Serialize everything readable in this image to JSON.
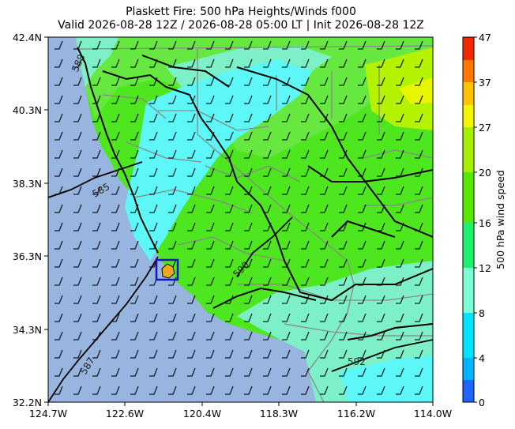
{
  "title": {
    "line1": "Plaskett Fire: 500 hPa Heights/Winds f000",
    "line2": "Valid 2026-08-28 12Z / 2026-08-28 05:00 LT | Init 2026-08-28 12Z"
  },
  "map": {
    "x_ticks": [
      "124.7W",
      "122.6W",
      "120.4W",
      "118.3W",
      "116.2W",
      "114.0W"
    ],
    "y_ticks": [
      "42.4N",
      "40.3N",
      "38.3N",
      "36.3N",
      "34.3N",
      "32.2N"
    ],
    "ocean_color": "#97b5de",
    "highlight_box_color": "#1414c8",
    "fire_marker_color": "#f2a81c",
    "contour_labels": [
      {
        "text": "588"
      },
      {
        "text": "585"
      },
      {
        "text": "590"
      },
      {
        "text": "587"
      },
      {
        "text": "592"
      }
    ]
  },
  "colorbar": {
    "label": "500 hPa wind speed",
    "ticks": [
      "0",
      "4",
      "8",
      "12",
      "16",
      "20",
      "27",
      "37",
      "47"
    ],
    "colors": [
      "#1e64ff",
      "#00b4ff",
      "#00e4ff",
      "#7cffd4",
      "#20f070",
      "#55e800",
      "#a6ef00",
      "#f5f500",
      "#ffc300",
      "#ff7800",
      "#f02800"
    ]
  }
}
